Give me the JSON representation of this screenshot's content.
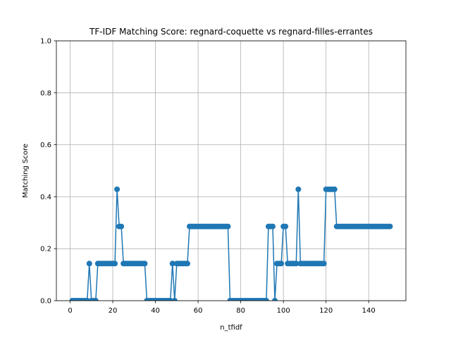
{
  "chart_data": {
    "type": "line",
    "title": "TF-IDF Matching Score: regnard-coquette vs regnard-filles-errantes",
    "xlabel": "n_tfidf",
    "ylabel": "Matching Score",
    "xlim": [
      -6.45,
      157.45
    ],
    "ylim": [
      0,
      1
    ],
    "xticks": [
      0,
      20,
      40,
      60,
      80,
      100,
      120,
      140
    ],
    "xtick_labels": [
      "0",
      "20",
      "40",
      "60",
      "80",
      "100",
      "120",
      "140"
    ],
    "yticks": [
      0,
      0.2,
      0.4,
      0.6,
      0.8,
      1.0
    ],
    "ytick_labels": [
      "0.0",
      "0.2",
      "0.4",
      "0.6",
      "0.8",
      "1.0"
    ],
    "grid": true,
    "marker": "circle",
    "series_color": "#1f77b4",
    "series": [
      {
        "x_start": 1,
        "x_step": 1,
        "values": [
          0,
          0,
          0,
          0,
          0,
          0,
          0,
          0,
          0.1429,
          0,
          0,
          0,
          0.1429,
          0.1429,
          0.1429,
          0.1429,
          0.1429,
          0.1429,
          0.1429,
          0.1429,
          0.1429,
          0.4286,
          0.2857,
          0.2857,
          0.1429,
          0.1429,
          0.1429,
          0.1429,
          0.1429,
          0.1429,
          0.1429,
          0.1429,
          0.1429,
          0.1429,
          0.1429,
          0,
          0,
          0,
          0,
          0,
          0,
          0,
          0,
          0,
          0,
          0,
          0,
          0.1429,
          0,
          0.1429,
          0.1429,
          0.1429,
          0.1429,
          0.1429,
          0.1429,
          0.2857,
          0.2857,
          0.2857,
          0.2857,
          0.2857,
          0.2857,
          0.2857,
          0.2857,
          0.2857,
          0.2857,
          0.2857,
          0.2857,
          0.2857,
          0.2857,
          0.2857,
          0.2857,
          0.2857,
          0.2857,
          0.2857,
          0,
          0,
          0,
          0,
          0,
          0,
          0,
          0,
          0,
          0,
          0,
          0,
          0,
          0,
          0,
          0,
          0,
          0,
          0.2857,
          0.2857,
          0.2857,
          0,
          0.1429,
          0.1429,
          0.1429,
          0.2857,
          0.2857,
          0.1429,
          0.1429,
          0.1429,
          0.1429,
          0.1429,
          0.4286,
          0.1429,
          0.1429,
          0.1429,
          0.1429,
          0.1429,
          0.1429,
          0.1429,
          0.1429,
          0.1429,
          0.1429,
          0.1429,
          0.1429,
          0.4286,
          0.4286,
          0.4286,
          0.4286,
          0.4286,
          0.2857,
          0.2857,
          0.2857,
          0.2857,
          0.2857,
          0.2857,
          0.2857,
          0.2857,
          0.2857,
          0.2857,
          0.2857,
          0.2857,
          0.2857,
          0.2857,
          0.2857,
          0.2857,
          0.2857,
          0.2857,
          0.2857,
          0.2857,
          0.2857,
          0.2857,
          0.2857,
          0.2857,
          0.2857,
          0.2857
        ]
      }
    ]
  }
}
